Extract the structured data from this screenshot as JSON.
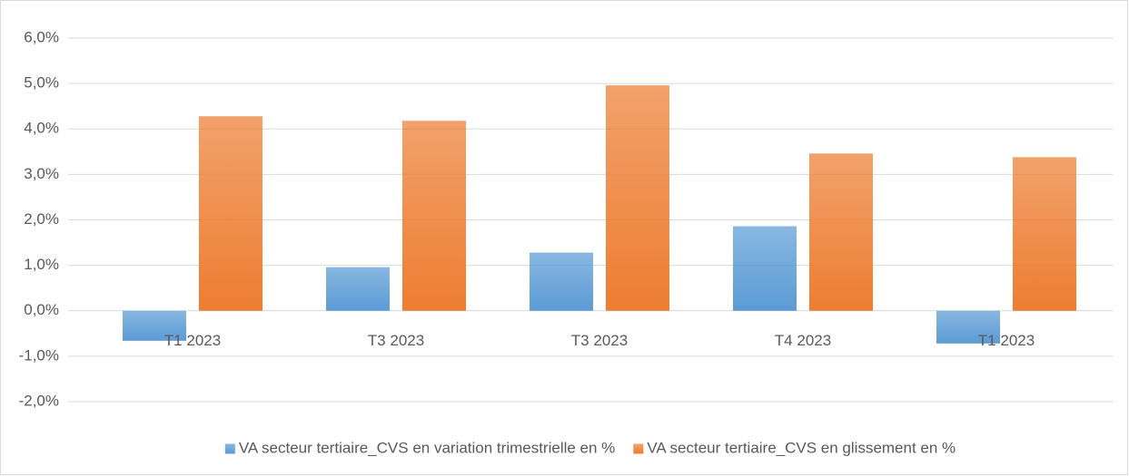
{
  "chart_data": {
    "type": "bar",
    "categories": [
      "T1 2023",
      "T3 2023",
      "T3 2023",
      "T4 2023",
      "T1 2023"
    ],
    "series": [
      {
        "name": "VA secteur tertiaire_CVS en variation trimestrielle en %",
        "color": "#5b9bd5",
        "values": [
          -0.66,
          0.96,
          1.28,
          1.86,
          -0.72
        ]
      },
      {
        "name": "VA secteur tertiaire_CVS en glissement en %",
        "color": "#ed7d31",
        "values": [
          4.28,
          4.18,
          4.96,
          3.46,
          3.38
        ]
      }
    ],
    "ylim": [
      -2,
      6
    ],
    "yticks": [
      {
        "value": -2,
        "label": "-2,0%"
      },
      {
        "value": -1,
        "label": "-1,0%"
      },
      {
        "value": 0,
        "label": "0,0%"
      },
      {
        "value": 1,
        "label": "1,0%"
      },
      {
        "value": 2,
        "label": "2,0%"
      },
      {
        "value": 3,
        "label": "3,0%"
      },
      {
        "value": 4,
        "label": "4,0%"
      },
      {
        "value": 5,
        "label": "5,0%"
      },
      {
        "value": 6,
        "label": "6,0%"
      }
    ],
    "grid": true,
    "legend": "bottom"
  }
}
